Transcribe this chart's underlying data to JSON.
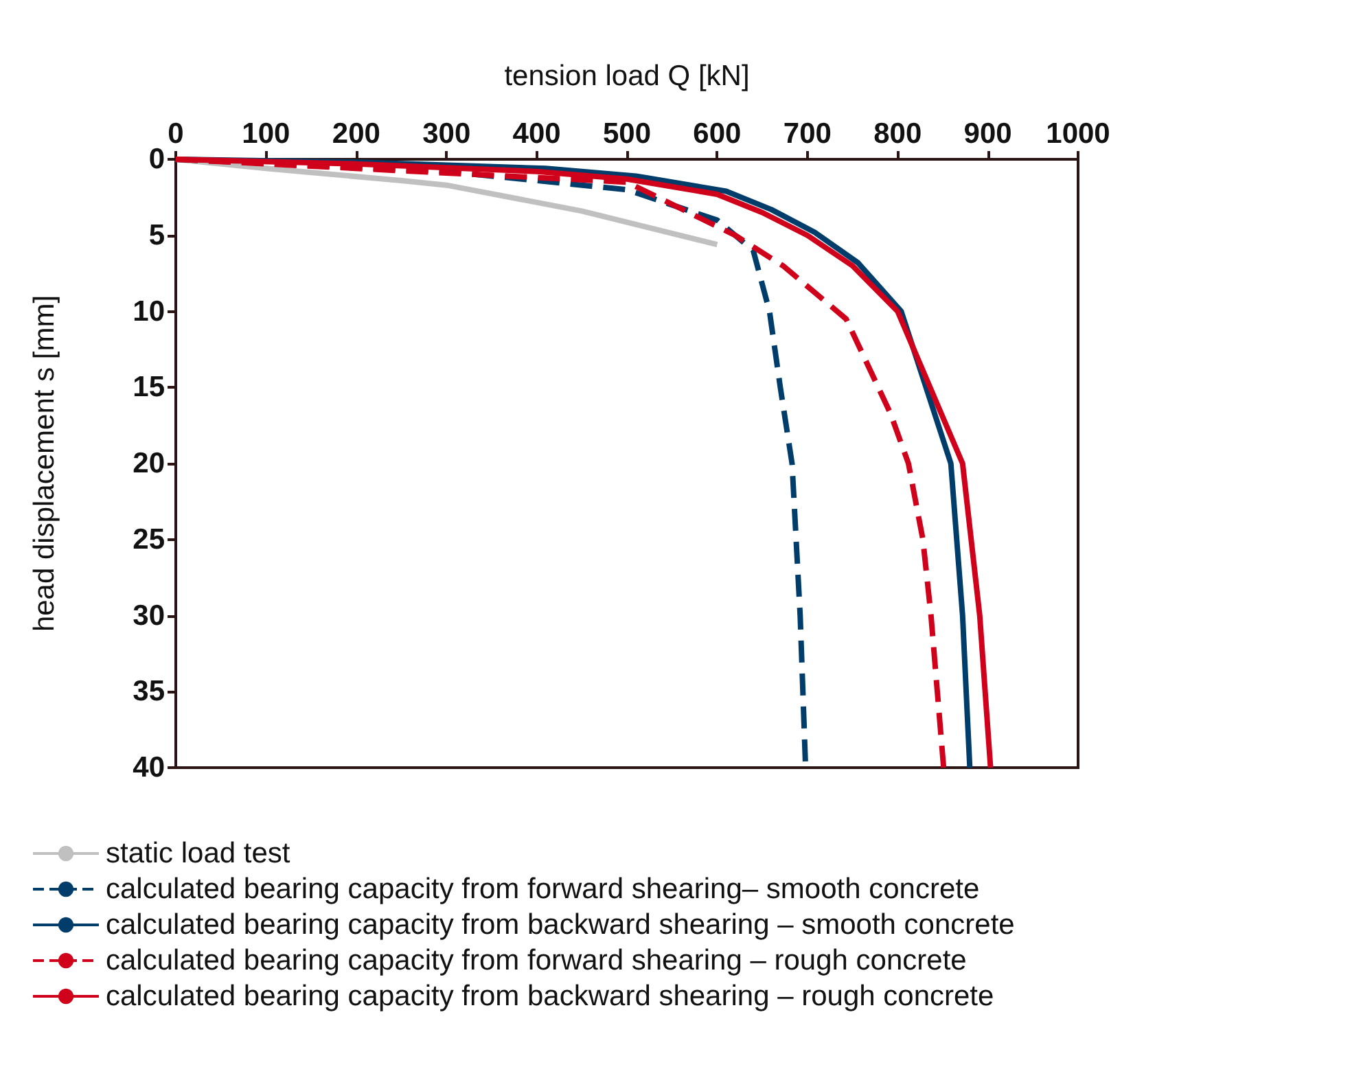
{
  "chart_data": {
    "type": "line",
    "xlabel": "tension load Q [kN]",
    "ylabel": "head displacement s [mm]",
    "xlim": [
      0,
      1000
    ],
    "xticks": [
      0,
      100,
      200,
      300,
      400,
      500,
      600,
      700,
      800,
      900,
      1000
    ],
    "ylim": [
      40,
      0
    ],
    "yticks": [
      0,
      5,
      10,
      15,
      20,
      25,
      30,
      35,
      40
    ],
    "grid": false,
    "legend": "bottom",
    "marker": "none",
    "series": [
      {
        "name": "static load test",
        "color": "#c0c0c0",
        "line_style": "solid",
        "x": [
          0,
          100,
          250,
          300,
          450,
          600
        ],
        "values": [
          0,
          0.6,
          1.4,
          1.7,
          3.4,
          5.6
        ]
      },
      {
        "name": "calculated bearing capacity from forward shearing– smooth concrete",
        "color": "#003d6b",
        "line_style": "dashed",
        "x": [
          0,
          300,
          500,
          600,
          640,
          658,
          670,
          683,
          692,
          698
        ],
        "values": [
          0,
          0.8,
          2,
          4,
          6,
          10,
          15,
          20,
          30,
          40
        ]
      },
      {
        "name": "calculated bearing capacity from backward shearing – smooth concrete",
        "color": "#003d6b",
        "line_style": "solid",
        "x": [
          0,
          210,
          410,
          510,
          610,
          660,
          708,
          756,
          804,
          859,
          872,
          880
        ],
        "values": [
          0,
          0.2,
          0.6,
          1.1,
          2.1,
          3.3,
          4.8,
          6.8,
          10,
          20,
          30,
          40
        ]
      },
      {
        "name": "calculated bearing capacity from forward shearing – rough concrete",
        "color": "#d0021b",
        "line_style": "dashed",
        "x": [
          0,
          500,
          620,
          673,
          743,
          792,
          812,
          828,
          837,
          844,
          851
        ],
        "values": [
          0,
          1.5,
          5,
          7,
          10.5,
          16.7,
          20,
          25,
          30,
          35,
          40
        ]
      },
      {
        "name": "calculated bearing capacity from backward shearing – rough concrete",
        "color": "#d0021b",
        "line_style": "solid",
        "x": [
          0,
          200,
          400,
          500,
          600,
          650,
          700,
          750,
          800,
          872,
          891,
          903
        ],
        "values": [
          0,
          0.3,
          0.8,
          1.3,
          2.3,
          3.5,
          5,
          7,
          10,
          20,
          30,
          40
        ]
      }
    ]
  }
}
